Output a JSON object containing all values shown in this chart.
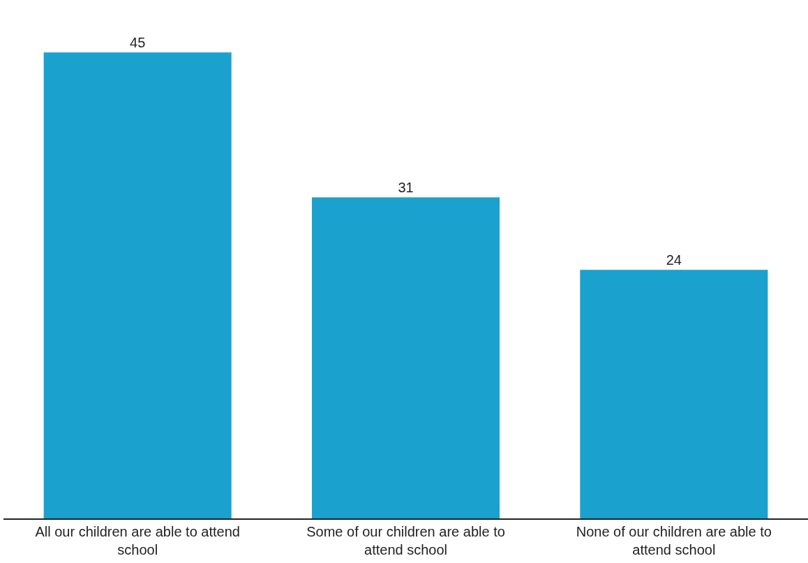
{
  "chart_data": {
    "type": "bar",
    "categories": [
      "All our children are able to attend school",
      "Some of our children are able to attend school",
      "None of our children are able to attend school"
    ],
    "values": [
      45,
      31,
      24
    ],
    "color": "#1aa1ce",
    "data_labels": true
  }
}
